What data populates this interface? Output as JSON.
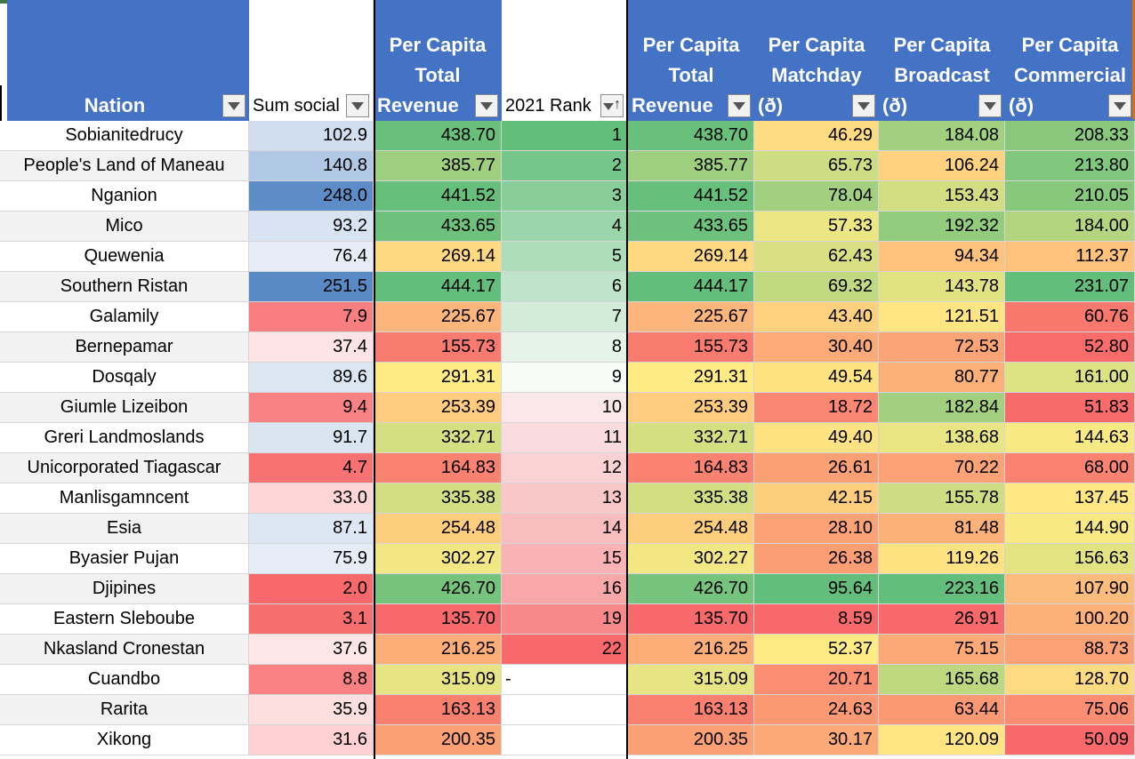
{
  "headers": {
    "nation": "Nation",
    "sum_social": "Sum social",
    "pc_total_1": [
      "Per Capita",
      "Total",
      "Revenue"
    ],
    "rank": "2021 Rank",
    "pc_total_2": [
      "Per Capita",
      "Total",
      "Revenue"
    ],
    "pc_matchday": [
      "Per Capita",
      "Matchday",
      "(ð)"
    ],
    "pc_broadcast": [
      "Per Capita",
      "Broadcast",
      "(ð)"
    ],
    "pc_commercial": [
      "Per Capita",
      "Commercial",
      "(ð)"
    ]
  },
  "rows": [
    {
      "nation": "Sobianitedrucy",
      "social": "102.9",
      "total": "438.70",
      "rank": "1",
      "matchday": "46.29",
      "broadcast": "184.08",
      "commercial": "208.33"
    },
    {
      "nation": "People's Land of Maneau",
      "social": "140.8",
      "total": "385.77",
      "rank": "2",
      "matchday": "65.73",
      "broadcast": "106.24",
      "commercial": "213.80"
    },
    {
      "nation": "Nganion",
      "social": "248.0",
      "total": "441.52",
      "rank": "3",
      "matchday": "78.04",
      "broadcast": "153.43",
      "commercial": "210.05"
    },
    {
      "nation": "Mico",
      "social": "93.2",
      "total": "433.65",
      "rank": "4",
      "matchday": "57.33",
      "broadcast": "192.32",
      "commercial": "184.00"
    },
    {
      "nation": "Quewenia",
      "social": "76.4",
      "total": "269.14",
      "rank": "5",
      "matchday": "62.43",
      "broadcast": "94.34",
      "commercial": "112.37"
    },
    {
      "nation": "Southern Ristan",
      "social": "251.5",
      "total": "444.17",
      "rank": "6",
      "matchday": "69.32",
      "broadcast": "143.78",
      "commercial": "231.07"
    },
    {
      "nation": "Galamily",
      "social": "7.9",
      "total": "225.67",
      "rank": "7",
      "matchday": "43.40",
      "broadcast": "121.51",
      "commercial": "60.76"
    },
    {
      "nation": "Bernepamar",
      "social": "37.4",
      "total": "155.73",
      "rank": "8",
      "matchday": "30.40",
      "broadcast": "72.53",
      "commercial": "52.80"
    },
    {
      "nation": "Dosqaly",
      "social": "89.6",
      "total": "291.31",
      "rank": "9",
      "matchday": "49.54",
      "broadcast": "80.77",
      "commercial": "161.00"
    },
    {
      "nation": "Giumle Lizeibon",
      "social": "9.4",
      "total": "253.39",
      "rank": "10",
      "matchday": "18.72",
      "broadcast": "182.84",
      "commercial": "51.83"
    },
    {
      "nation": "Greri Landmoslands",
      "social": "91.7",
      "total": "332.71",
      "rank": "11",
      "matchday": "49.40",
      "broadcast": "138.68",
      "commercial": "144.63"
    },
    {
      "nation": "Unicorporated Tiagascar",
      "social": "4.7",
      "total": "164.83",
      "rank": "12",
      "matchday": "26.61",
      "broadcast": "70.22",
      "commercial": "68.00"
    },
    {
      "nation": "Manlisgamncent",
      "social": "33.0",
      "total": "335.38",
      "rank": "13",
      "matchday": "42.15",
      "broadcast": "155.78",
      "commercial": "137.45"
    },
    {
      "nation": "Esia",
      "social": "87.1",
      "total": "254.48",
      "rank": "14",
      "matchday": "28.10",
      "broadcast": "81.48",
      "commercial": "144.90"
    },
    {
      "nation": "Byasier Pujan",
      "social": "75.9",
      "total": "302.27",
      "rank": "15",
      "matchday": "26.38",
      "broadcast": "119.26",
      "commercial": "156.63"
    },
    {
      "nation": "Djipines",
      "social": "2.0",
      "total": "426.70",
      "rank": "16",
      "matchday": "95.64",
      "broadcast": "223.16",
      "commercial": "107.90"
    },
    {
      "nation": "Eastern Sleboube",
      "social": "3.1",
      "total": "135.70",
      "rank": "19",
      "matchday": "8.59",
      "broadcast": "26.91",
      "commercial": "100.20"
    },
    {
      "nation": "Nkasland Cronestan",
      "social": "37.6",
      "total": "216.25",
      "rank": "22",
      "matchday": "52.37",
      "broadcast": "75.15",
      "commercial": "88.73"
    },
    {
      "nation": "Cuandbo",
      "social": "8.8",
      "total": "315.09",
      "rank": "-",
      "matchday": "20.71",
      "broadcast": "165.68",
      "commercial": "128.70"
    },
    {
      "nation": "Rarita",
      "social": "35.9",
      "total": "163.13",
      "rank": "",
      "matchday": "24.63",
      "broadcast": "63.44",
      "commercial": "75.06"
    },
    {
      "nation": "Xikong",
      "social": "31.6",
      "total": "200.35",
      "rank": "",
      "matchday": "30.17",
      "broadcast": "120.09",
      "commercial": "50.09"
    }
  ],
  "colors": {
    "header_blue": "#4472c4",
    "good_green": "#63be7b",
    "mid_yellow": "#ffeb84",
    "bad_red": "#f8696b",
    "social_blue": "#5a8ac6",
    "rank_pink": "#f8696b"
  }
}
